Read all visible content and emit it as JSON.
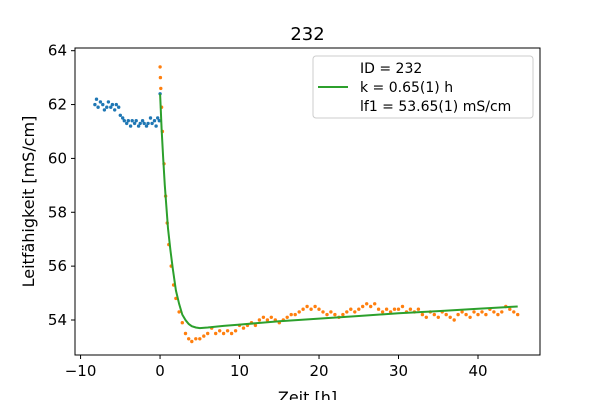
{
  "chart_data": {
    "type": "scatter",
    "title": "232",
    "xlabel": "Zeit [h]",
    "ylabel": "Leitfähigkeit [mS/cm]",
    "xlim": [
      -10.7,
      47.8
    ],
    "ylim": [
      52.7,
      64.1
    ],
    "x_ticks": [
      -10,
      0,
      10,
      20,
      30,
      40
    ],
    "x_tick_labels": [
      "−10",
      "0",
      "10",
      "20",
      "30",
      "40"
    ],
    "y_ticks": [
      54,
      56,
      58,
      60,
      62,
      64
    ],
    "y_tick_labels": [
      "54",
      "56",
      "58",
      "60",
      "62",
      "64"
    ],
    "grid": false,
    "legend": {
      "placement": "top-right",
      "lines": [
        "ID = 232",
        "k = 0.65(1) h",
        "lf1 = 53.65(1) mS/cm"
      ]
    },
    "series": [
      {
        "kind": "points",
        "color": "#1f77b4",
        "points": [
          [
            -8.2,
            62.0
          ],
          [
            -8.0,
            62.2
          ],
          [
            -7.8,
            61.9
          ],
          [
            -7.5,
            62.1
          ],
          [
            -7.2,
            62.0
          ],
          [
            -7.0,
            61.8
          ],
          [
            -6.7,
            61.9
          ],
          [
            -6.5,
            62.1
          ],
          [
            -6.2,
            61.9
          ],
          [
            -6.0,
            62.0
          ],
          [
            -5.7,
            61.8
          ],
          [
            -5.5,
            62.0
          ],
          [
            -5.2,
            61.9
          ],
          [
            -5.0,
            61.6
          ],
          [
            -4.7,
            61.5
          ],
          [
            -4.5,
            61.4
          ],
          [
            -4.2,
            61.3
          ],
          [
            -4.0,
            61.4
          ],
          [
            -3.7,
            61.2
          ],
          [
            -3.5,
            61.4
          ],
          [
            -3.2,
            61.3
          ],
          [
            -3.0,
            61.4
          ],
          [
            -2.7,
            61.2
          ],
          [
            -2.5,
            61.3
          ],
          [
            -2.2,
            61.4
          ],
          [
            -2.0,
            61.3
          ],
          [
            -1.7,
            61.2
          ],
          [
            -1.5,
            61.3
          ],
          [
            -1.2,
            61.5
          ],
          [
            -1.0,
            61.3
          ],
          [
            -0.7,
            61.4
          ],
          [
            -0.5,
            61.2
          ],
          [
            -0.3,
            61.5
          ],
          [
            -0.1,
            61.4
          ],
          [
            0.0,
            62.4
          ]
        ]
      },
      {
        "kind": "points",
        "color": "#ff7f0e",
        "points": [
          [
            0.0,
            63.4
          ],
          [
            0.05,
            63.0
          ],
          [
            0.1,
            62.6
          ],
          [
            0.2,
            61.9
          ],
          [
            0.3,
            61.0
          ],
          [
            0.5,
            59.8
          ],
          [
            0.7,
            58.6
          ],
          [
            0.9,
            57.6
          ],
          [
            1.1,
            56.8
          ],
          [
            1.4,
            56.0
          ],
          [
            1.7,
            55.3
          ],
          [
            2.0,
            54.8
          ],
          [
            2.4,
            54.3
          ],
          [
            2.8,
            53.9
          ],
          [
            3.2,
            53.5
          ],
          [
            3.6,
            53.3
          ],
          [
            4.0,
            53.2
          ],
          [
            4.5,
            53.3
          ],
          [
            5.0,
            53.3
          ],
          [
            5.5,
            53.4
          ],
          [
            6.0,
            53.5
          ],
          [
            6.5,
            53.7
          ],
          [
            7.0,
            53.5
          ],
          [
            7.5,
            53.6
          ],
          [
            8.0,
            53.5
          ],
          [
            8.5,
            53.6
          ],
          [
            9.0,
            53.5
          ],
          [
            9.5,
            53.6
          ],
          [
            10.0,
            53.8
          ],
          [
            10.5,
            53.7
          ],
          [
            11.0,
            53.8
          ],
          [
            11.5,
            53.9
          ],
          [
            12.0,
            53.8
          ],
          [
            12.5,
            54.0
          ],
          [
            13.0,
            54.1
          ],
          [
            13.5,
            54.0
          ],
          [
            14.0,
            54.1
          ],
          [
            14.5,
            54.0
          ],
          [
            15.0,
            53.9
          ],
          [
            15.5,
            54.0
          ],
          [
            16.0,
            54.1
          ],
          [
            16.5,
            54.2
          ],
          [
            17.0,
            54.2
          ],
          [
            17.5,
            54.3
          ],
          [
            18.0,
            54.4
          ],
          [
            18.5,
            54.5
          ],
          [
            19.0,
            54.4
          ],
          [
            19.5,
            54.5
          ],
          [
            20.0,
            54.4
          ],
          [
            20.5,
            54.3
          ],
          [
            21.0,
            54.2
          ],
          [
            21.5,
            54.3
          ],
          [
            22.0,
            54.2
          ],
          [
            22.5,
            54.1
          ],
          [
            23.0,
            54.2
          ],
          [
            23.5,
            54.3
          ],
          [
            24.0,
            54.4
          ],
          [
            24.5,
            54.3
          ],
          [
            25.0,
            54.4
          ],
          [
            25.5,
            54.5
          ],
          [
            26.0,
            54.6
          ],
          [
            26.5,
            54.5
          ],
          [
            27.0,
            54.6
          ],
          [
            27.5,
            54.4
          ],
          [
            28.0,
            54.3
          ],
          [
            28.5,
            54.4
          ],
          [
            29.0,
            54.3
          ],
          [
            29.5,
            54.4
          ],
          [
            30.0,
            54.4
          ],
          [
            30.5,
            54.5
          ],
          [
            31.0,
            54.3
          ],
          [
            31.5,
            54.4
          ],
          [
            32.0,
            54.3
          ],
          [
            32.5,
            54.4
          ],
          [
            33.0,
            54.2
          ],
          [
            33.5,
            54.1
          ],
          [
            34.0,
            54.3
          ],
          [
            34.5,
            54.2
          ],
          [
            35.0,
            54.1
          ],
          [
            35.5,
            54.3
          ],
          [
            36.0,
            54.2
          ],
          [
            36.5,
            54.1
          ],
          [
            37.0,
            54.0
          ],
          [
            37.5,
            54.2
          ],
          [
            38.0,
            54.3
          ],
          [
            38.5,
            54.2
          ],
          [
            39.0,
            54.1
          ],
          [
            39.5,
            54.3
          ],
          [
            40.0,
            54.2
          ],
          [
            40.5,
            54.3
          ],
          [
            41.0,
            54.2
          ],
          [
            41.5,
            54.4
          ],
          [
            42.0,
            54.3
          ],
          [
            42.5,
            54.2
          ],
          [
            43.0,
            54.3
          ],
          [
            43.5,
            54.5
          ],
          [
            44.0,
            54.4
          ],
          [
            44.5,
            54.3
          ],
          [
            45.0,
            54.2
          ]
        ]
      },
      {
        "kind": "line",
        "color": "#2ca02c",
        "legend_line": true,
        "points": [
          [
            0.0,
            62.4
          ],
          [
            0.2,
            61.1
          ],
          [
            0.4,
            60.0
          ],
          [
            0.6,
            59.0
          ],
          [
            0.8,
            58.2
          ],
          [
            1.0,
            57.4
          ],
          [
            1.3,
            56.6
          ],
          [
            1.6,
            55.9
          ],
          [
            2.0,
            55.1
          ],
          [
            2.4,
            54.6
          ],
          [
            2.8,
            54.2
          ],
          [
            3.2,
            54.0
          ],
          [
            3.6,
            53.85
          ],
          [
            4.0,
            53.77
          ],
          [
            4.5,
            53.72
          ],
          [
            5.0,
            53.7
          ],
          [
            6.0,
            53.72
          ],
          [
            8.0,
            53.78
          ],
          [
            10.0,
            53.83
          ],
          [
            15.0,
            53.95
          ],
          [
            20.0,
            54.05
          ],
          [
            25.0,
            54.15
          ],
          [
            30.0,
            54.25
          ],
          [
            35.0,
            54.33
          ],
          [
            40.0,
            54.42
          ],
          [
            45.0,
            54.5
          ]
        ]
      }
    ]
  }
}
